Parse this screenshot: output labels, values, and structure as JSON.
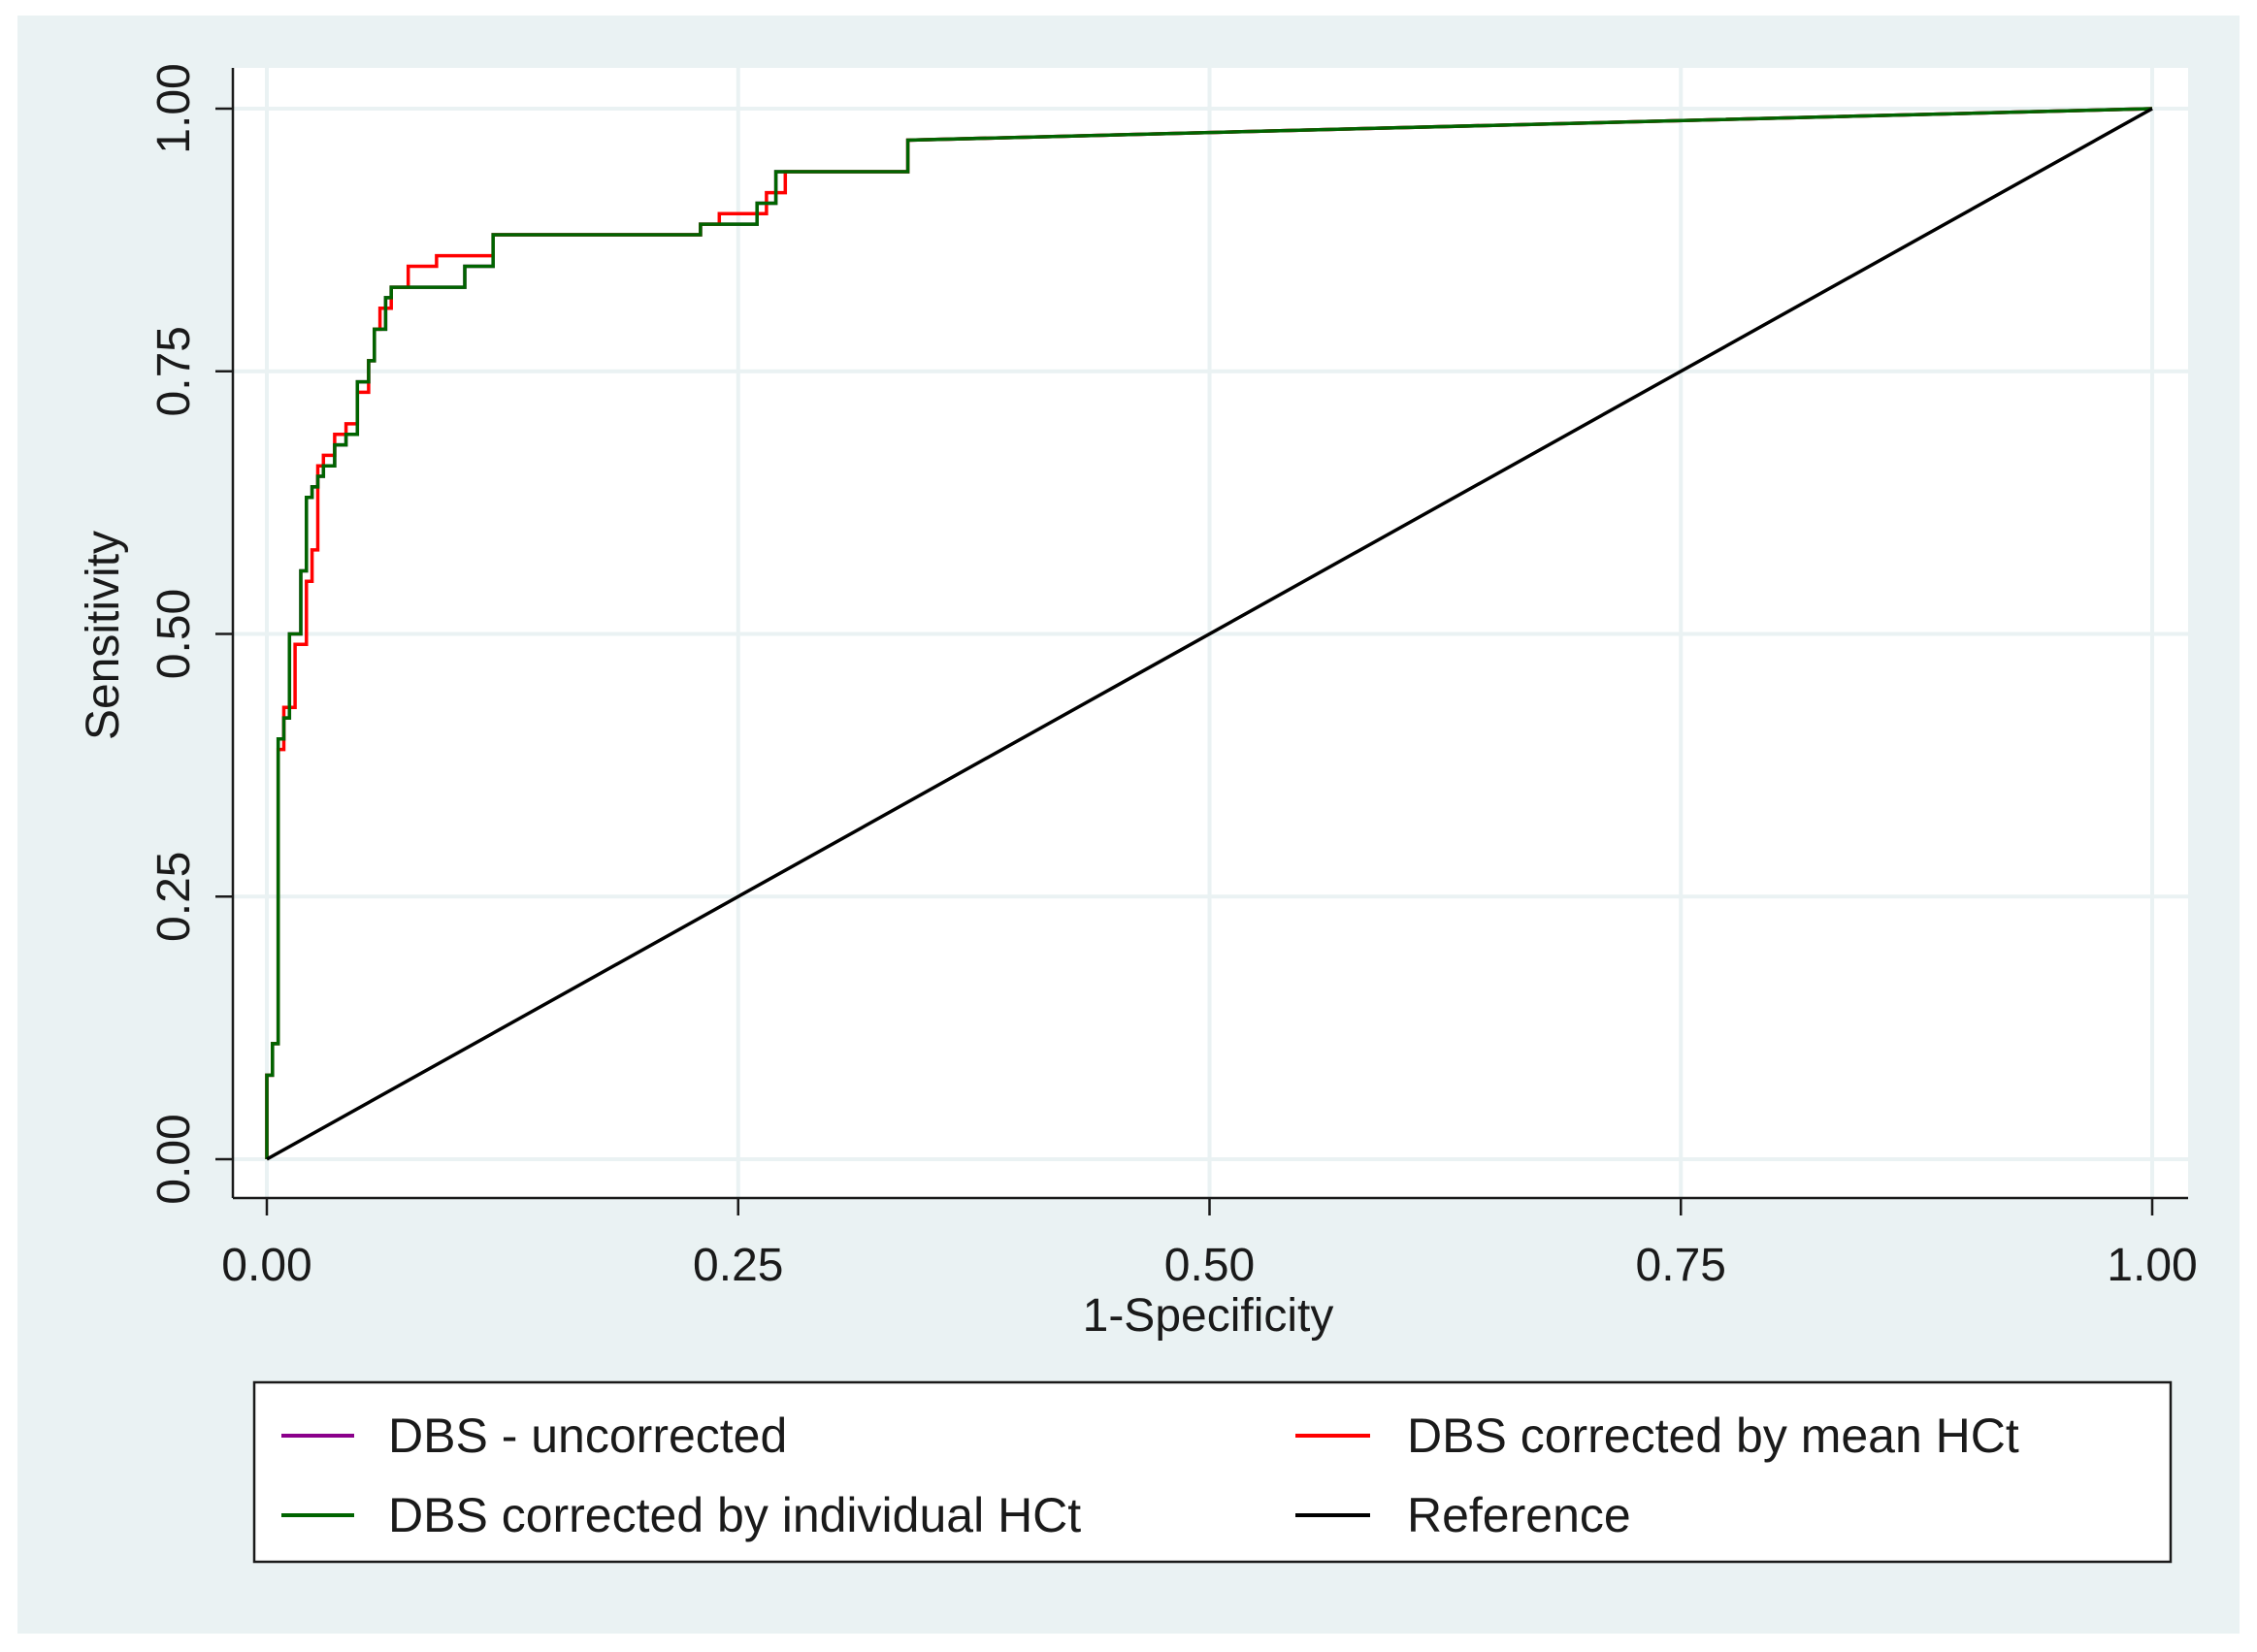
{
  "chart_data": {
    "type": "line",
    "xlabel": "1-Specificity",
    "ylabel": "Sensitivity",
    "xlim": [
      0,
      1
    ],
    "ylim": [
      0,
      1
    ],
    "xticks": [
      "0.00",
      "0.25",
      "0.50",
      "0.75",
      "1.00"
    ],
    "yticks": [
      "0.00",
      "0.25",
      "0.50",
      "0.75",
      "1.00"
    ],
    "grid": true,
    "legend_position": "bottom",
    "series": [
      {
        "name": "DBS - uncorrected",
        "color": "#8B008B",
        "x": [
          0,
          0,
          0.003,
          0.003,
          0.006,
          0.006,
          0.009,
          0.009,
          0.012,
          0.012,
          0.018,
          0.018,
          0.021,
          0.021,
          0.024,
          0.024,
          0.027,
          0.027,
          0.03,
          0.03,
          0.036,
          0.036,
          0.042,
          0.042,
          0.048,
          0.048,
          0.054,
          0.054,
          0.057,
          0.057,
          0.063,
          0.063,
          0.066,
          0.066,
          0.09,
          0.09,
          0.105,
          0.105,
          0.12,
          0.12,
          0.23,
          0.23,
          0.26,
          0.26,
          0.27,
          0.27,
          0.34,
          0.34,
          1.0
        ],
        "y": [
          0,
          0.08,
          0.08,
          0.11,
          0.11,
          0.4,
          0.4,
          0.42,
          0.42,
          0.5,
          0.5,
          0.56,
          0.56,
          0.63,
          0.63,
          0.64,
          0.64,
          0.65,
          0.65,
          0.66,
          0.66,
          0.68,
          0.68,
          0.69,
          0.69,
          0.74,
          0.74,
          0.76,
          0.76,
          0.79,
          0.79,
          0.82,
          0.82,
          0.83,
          0.83,
          0.83,
          0.83,
          0.85,
          0.85,
          0.88,
          0.88,
          0.89,
          0.89,
          0.91,
          0.91,
          0.94,
          0.94,
          0.97,
          1.0
        ]
      },
      {
        "name": "DBS corrected by mean HCt",
        "color": "#FF0000",
        "x": [
          0,
          0,
          0.003,
          0.003,
          0.006,
          0.006,
          0.009,
          0.009,
          0.015,
          0.015,
          0.021,
          0.021,
          0.024,
          0.024,
          0.027,
          0.027,
          0.03,
          0.03,
          0.036,
          0.036,
          0.042,
          0.042,
          0.048,
          0.048,
          0.054,
          0.054,
          0.057,
          0.057,
          0.06,
          0.06,
          0.066,
          0.066,
          0.075,
          0.075,
          0.09,
          0.09,
          0.12,
          0.12,
          0.23,
          0.23,
          0.24,
          0.24,
          0.265,
          0.265,
          0.275,
          0.275,
          0.34,
          0.34,
          1.0
        ],
        "y": [
          0,
          0.08,
          0.08,
          0.11,
          0.11,
          0.39,
          0.39,
          0.43,
          0.43,
          0.49,
          0.49,
          0.55,
          0.55,
          0.58,
          0.58,
          0.66,
          0.66,
          0.67,
          0.67,
          0.69,
          0.69,
          0.7,
          0.7,
          0.73,
          0.73,
          0.76,
          0.76,
          0.79,
          0.79,
          0.81,
          0.81,
          0.83,
          0.83,
          0.85,
          0.85,
          0.86,
          0.86,
          0.88,
          0.88,
          0.89,
          0.89,
          0.9,
          0.9,
          0.92,
          0.92,
          0.94,
          0.94,
          0.97,
          1.0
        ]
      },
      {
        "name": "DBS corrected by individual HCt",
        "color": "#006400",
        "x": [
          0,
          0,
          0.003,
          0.003,
          0.006,
          0.006,
          0.009,
          0.009,
          0.012,
          0.012,
          0.018,
          0.018,
          0.021,
          0.021,
          0.024,
          0.024,
          0.027,
          0.027,
          0.03,
          0.03,
          0.036,
          0.036,
          0.042,
          0.042,
          0.048,
          0.048,
          0.054,
          0.054,
          0.057,
          0.057,
          0.063,
          0.063,
          0.066,
          0.066,
          0.09,
          0.09,
          0.105,
          0.105,
          0.12,
          0.12,
          0.23,
          0.23,
          0.26,
          0.26,
          0.27,
          0.27,
          0.34,
          0.34,
          1.0
        ],
        "y": [
          0,
          0.08,
          0.08,
          0.11,
          0.11,
          0.4,
          0.4,
          0.42,
          0.42,
          0.5,
          0.5,
          0.56,
          0.56,
          0.63,
          0.63,
          0.64,
          0.64,
          0.65,
          0.65,
          0.66,
          0.66,
          0.68,
          0.68,
          0.69,
          0.69,
          0.74,
          0.74,
          0.76,
          0.76,
          0.79,
          0.79,
          0.82,
          0.82,
          0.83,
          0.83,
          0.83,
          0.83,
          0.85,
          0.85,
          0.88,
          0.88,
          0.89,
          0.89,
          0.91,
          0.91,
          0.94,
          0.94,
          0.97,
          1.0
        ]
      },
      {
        "name": "Reference",
        "color": "#000000",
        "x": [
          0,
          1
        ],
        "y": [
          0,
          1
        ]
      }
    ]
  }
}
